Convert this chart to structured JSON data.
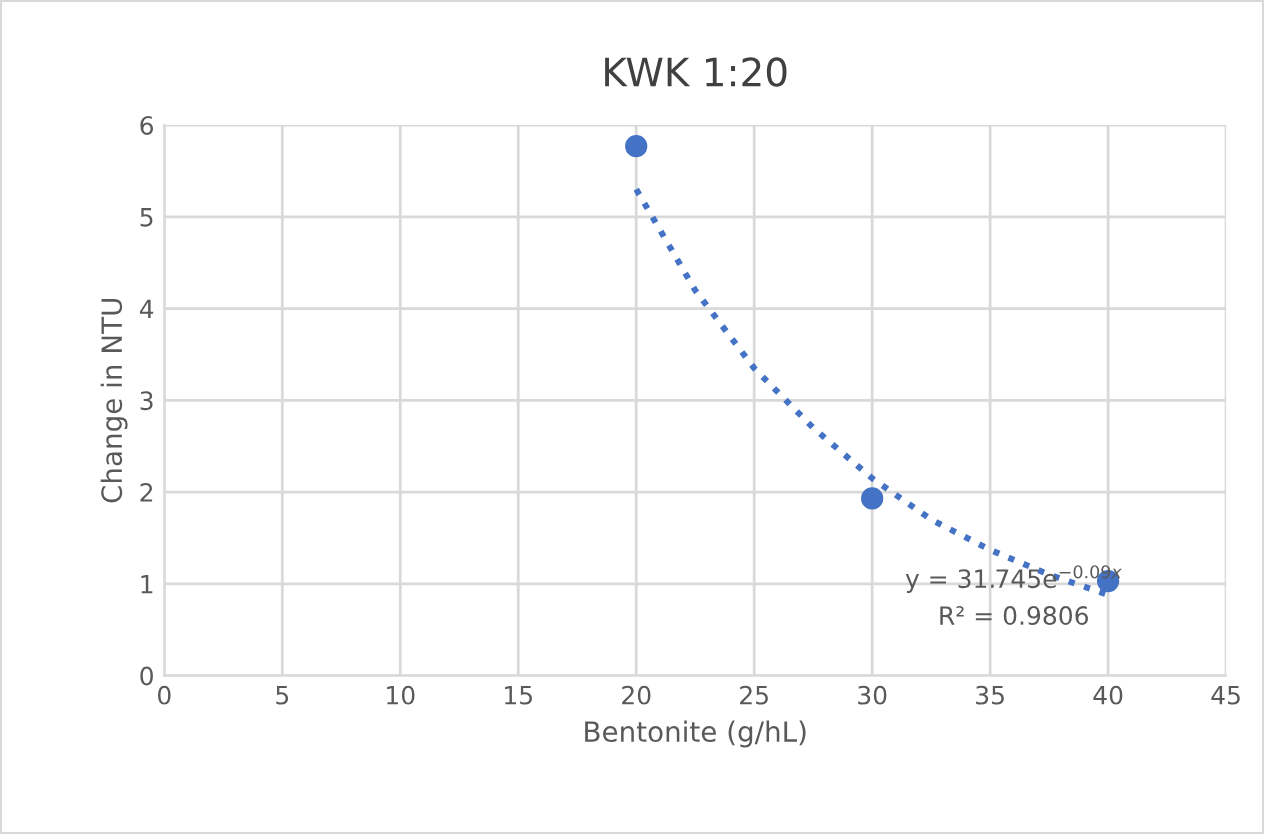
{
  "chart_data": {
    "type": "scatter",
    "title": "KWK 1:20",
    "xlabel": "Bentonite (g/hL)",
    "ylabel": "Change in NTU",
    "series": [
      {
        "color": "#4472c4",
        "x": [
          20,
          30,
          40
        ],
        "values": [
          5.77,
          1.93,
          1.03
        ],
        "marker": "circle"
      },
      {
        "type": "line",
        "color": "#4472c4",
        "line_style": "dotted",
        "marker": "none",
        "x": [
          20,
          22.5,
          25,
          27.5,
          30,
          32.5,
          35,
          37.5,
          40
        ],
        "values": [
          5.3,
          4.2,
          3.35,
          2.7,
          2.15,
          1.7,
          1.37,
          1.1,
          0.88
        ]
      }
    ],
    "annotations": [
      "y = 31.745e$^{−0.09x}$",
      "R² = 0.9806"
    ],
    "xlim": [
      0,
      45
    ],
    "xticks": [
      0,
      5,
      10,
      15,
      20,
      25,
      30,
      35,
      40,
      45
    ],
    "ylim": [
      0,
      6
    ],
    "yticks": [
      0,
      1,
      2,
      3,
      4,
      5,
      6
    ],
    "grid": true,
    "legend": false
  }
}
